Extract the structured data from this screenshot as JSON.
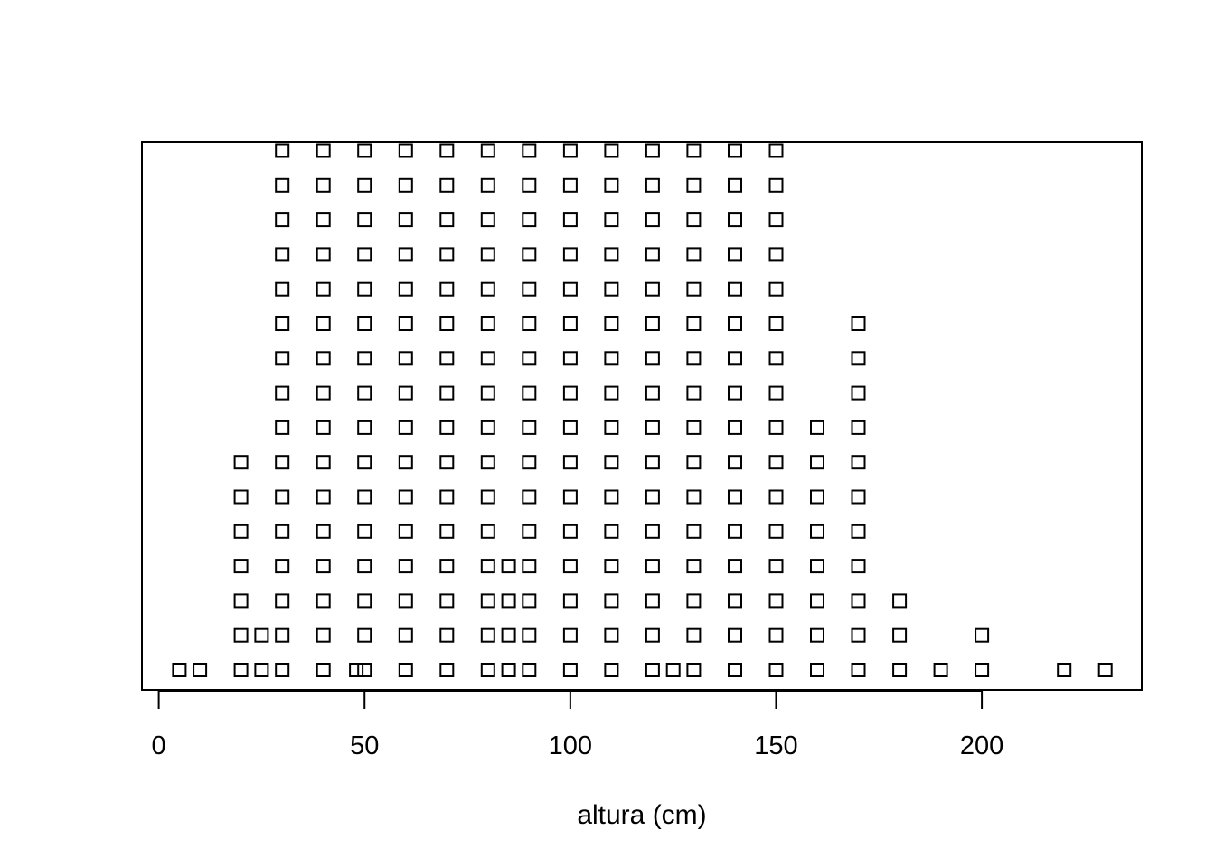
{
  "chart_data": {
    "type": "scatter",
    "subtype": "stacked dot plot (stripchart, method = stack)",
    "title": "",
    "xlabel": "altura (cm)",
    "ylabel": "",
    "xlim": [
      0,
      240
    ],
    "x_ticks": [
      0,
      50,
      100,
      150,
      200
    ],
    "x_tick_labels": [
      "0",
      "50",
      "100",
      "150",
      "200"
    ],
    "marker": "open-square",
    "marker_color": "#000000",
    "grid": false,
    "legend": "none",
    "stacks": [
      {
        "x": 5,
        "count": 1
      },
      {
        "x": 10,
        "count": 1
      },
      {
        "x": 20,
        "count": 7
      },
      {
        "x": 25,
        "count": 2
      },
      {
        "x": 30,
        "count": 16
      },
      {
        "x": 40,
        "count": 17
      },
      {
        "x": 48,
        "count": 1
      },
      {
        "x": 50,
        "count": 17
      },
      {
        "x": 60,
        "count": 17
      },
      {
        "x": 70,
        "count": 17
      },
      {
        "x": 80,
        "count": 17
      },
      {
        "x": 85,
        "count": 4
      },
      {
        "x": 90,
        "count": 17
      },
      {
        "x": 100,
        "count": 17
      },
      {
        "x": 110,
        "count": 17
      },
      {
        "x": 120,
        "count": 17
      },
      {
        "x": 125,
        "count": 1
      },
      {
        "x": 130,
        "count": 17
      },
      {
        "x": 140,
        "count": 17
      },
      {
        "x": 150,
        "count": 17
      },
      {
        "x": 160,
        "count": 8
      },
      {
        "x": 170,
        "count": 11
      },
      {
        "x": 180,
        "count": 3
      },
      {
        "x": 190,
        "count": 1
      },
      {
        "x": 200,
        "count": 2
      },
      {
        "x": 220,
        "count": 1
      },
      {
        "x": 230,
        "count": 1
      }
    ]
  }
}
